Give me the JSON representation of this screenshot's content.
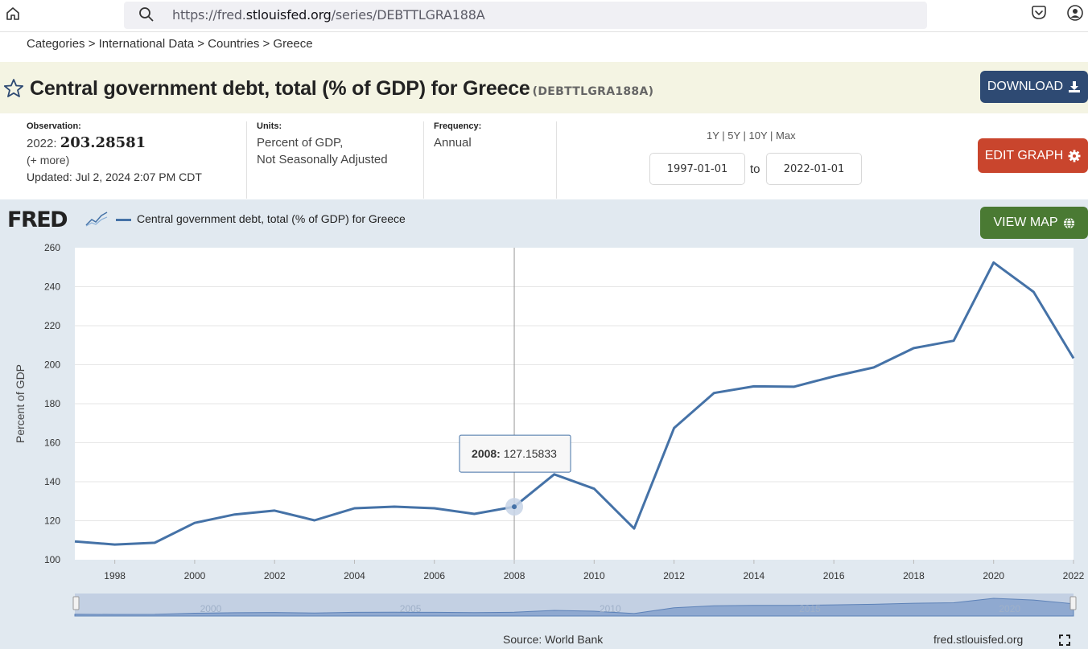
{
  "browser": {
    "url_prefix": "https://fred.",
    "url_domain": "stlouisfed.org",
    "url_path": "/series/DEBTTLGRA188A"
  },
  "breadcrumb": "Categories > International Data > Countries > Greece",
  "title": {
    "text": "Central government debt, total (% of GDP) for Greece",
    "series_id": "(DEBTTLGRA188A)"
  },
  "buttons": {
    "download": "DOWNLOAD",
    "edit_graph": "EDIT GRAPH",
    "view_map": "VIEW MAP"
  },
  "observation": {
    "label": "Observation:",
    "year": "2022:",
    "value": "203.28581",
    "more": "(+ more)",
    "updated_label": "Updated:",
    "updated": "Jul 2, 2024 2:07 PM CDT"
  },
  "units": {
    "label": "Units:",
    "line1": "Percent of GDP,",
    "line2": "Not Seasonally Adjusted"
  },
  "frequency": {
    "label": "Frequency:",
    "value": "Annual"
  },
  "range": {
    "links": "1Y | 5Y | 10Y | Max",
    "start": "1997-01-01",
    "to": "to",
    "end": "2022-01-01"
  },
  "logo": "FRED",
  "legend": "Central government debt, total (% of GDP) for Greece",
  "source": "Source: World Bank",
  "fred_url": "fred.stlouisfed.org",
  "colors": {
    "series": "#4572a7",
    "download": "#2e4a73",
    "edit": "#c9452d",
    "map": "#4a7a33"
  },
  "chart_data": {
    "type": "line",
    "ylabel": "Percent of GDP",
    "ylim": [
      100,
      260
    ],
    "yticks": [
      100,
      120,
      140,
      160,
      180,
      200,
      220,
      240,
      260
    ],
    "xlim": [
      1997,
      2022
    ],
    "xticks": [
      "1998",
      "2000",
      "2002",
      "2004",
      "2006",
      "2008",
      "2010",
      "2012",
      "2014",
      "2016",
      "2018",
      "2020",
      "2022"
    ],
    "x": [
      1997,
      1998,
      1999,
      2000,
      2001,
      2002,
      2003,
      2004,
      2005,
      2006,
      2007,
      2008,
      2009,
      2010,
      2011,
      2012,
      2013,
      2014,
      2015,
      2016,
      2017,
      2018,
      2019,
      2020,
      2021,
      2022
    ],
    "values": [
      109.4,
      107.8,
      108.7,
      118.9,
      123.2,
      125.2,
      120.2,
      126.4,
      127.2,
      126.4,
      123.5,
      127.15833,
      143.8,
      136.4,
      116.0,
      167.5,
      185.5,
      188.9,
      188.7,
      194.0,
      198.6,
      208.5,
      212.3,
      252.4,
      237.3,
      203.28581
    ],
    "tooltip": {
      "year": "2008:",
      "value": "127.15833"
    },
    "grid": true,
    "navigator_labels": [
      "2000",
      "2005",
      "2010",
      "2015",
      "2020"
    ]
  }
}
